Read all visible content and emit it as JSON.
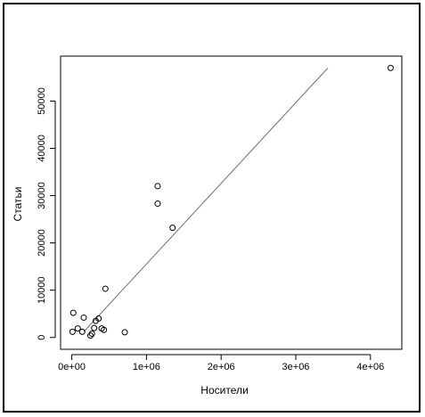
{
  "chart_data": {
    "type": "scatter",
    "title": "",
    "xlabel": "Носители",
    "ylabel": "Статьи",
    "xlim": [
      -150000,
      4420000
    ],
    "ylim": [
      -2500,
      59500
    ],
    "x_ticks": [
      0,
      1000000,
      2000000,
      3000000,
      4000000
    ],
    "x_tick_labels": [
      "0e+00",
      "1e+06",
      "2e+06",
      "3e+06",
      "4e+06"
    ],
    "y_ticks": [
      0,
      10000,
      20000,
      30000,
      40000,
      50000
    ],
    "y_tick_labels": [
      "0",
      "10000",
      "20000",
      "30000",
      "40000",
      "50000"
    ],
    "grid": false,
    "points": {
      "x": [
        10000,
        20000,
        80000,
        140000,
        160000,
        250000,
        270000,
        300000,
        320000,
        360000,
        400000,
        430000,
        450000,
        710000,
        1150000,
        1150000,
        1350000,
        4270000
      ],
      "y": [
        1200,
        5200,
        1900,
        1200,
        4200,
        400,
        800,
        2000,
        3500,
        4000,
        1900,
        1600,
        10300,
        1100,
        32000,
        28300,
        23200,
        57000
      ]
    },
    "fit_line": {
      "x": [
        160000,
        3430000
      ],
      "y": [
        1200,
        57000
      ]
    },
    "colors": {
      "points": "#000000",
      "line": "#6e6e6e",
      "axes": "#000000",
      "border": "#000000"
    }
  }
}
